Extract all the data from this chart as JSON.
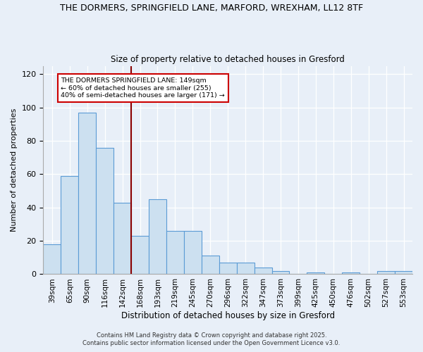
{
  "title1": "THE DORMERS, SPRINGFIELD LANE, MARFORD, WREXHAM, LL12 8TF",
  "title2": "Size of property relative to detached houses in Gresford",
  "xlabel": "Distribution of detached houses by size in Gresford",
  "ylabel": "Number of detached properties",
  "categories": [
    "39sqm",
    "65sqm",
    "90sqm",
    "116sqm",
    "142sqm",
    "168sqm",
    "193sqm",
    "219sqm",
    "245sqm",
    "270sqm",
    "296sqm",
    "322sqm",
    "347sqm",
    "373sqm",
    "399sqm",
    "425sqm",
    "450sqm",
    "476sqm",
    "502sqm",
    "527sqm",
    "553sqm"
  ],
  "values": [
    18,
    59,
    97,
    76,
    43,
    23,
    45,
    26,
    26,
    11,
    7,
    7,
    4,
    2,
    0,
    1,
    0,
    1,
    0,
    2,
    2
  ],
  "bar_color": "#cce0f0",
  "bar_edge_color": "#5b9bd5",
  "bar_edge_width": 0.8,
  "redline_x": 4.5,
  "annotation_text": "THE DORMERS SPRINGFIELD LANE: 149sqm\n← 60% of detached houses are smaller (255)\n40% of semi-detached houses are larger (171) →",
  "annotation_box_color": "white",
  "annotation_box_edge": "#cc0000",
  "ylim": [
    0,
    125
  ],
  "yticks": [
    0,
    20,
    40,
    60,
    80,
    100,
    120
  ],
  "bg_color": "#e8eff8",
  "fig_bg_color": "#e8eff8",
  "footer1": "Contains HM Land Registry data © Crown copyright and database right 2025.",
  "footer2": "Contains public sector information licensed under the Open Government Licence v3.0."
}
